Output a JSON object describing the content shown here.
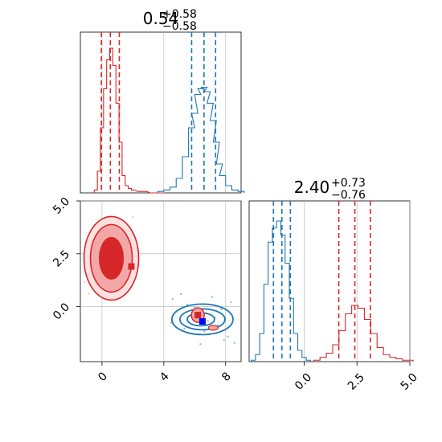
{
  "chart_data": {
    "type": "corner",
    "colors": {
      "red": "#d62728",
      "blue": "#1f77b4",
      "red_light": "#f4a7a7",
      "grid": "#b0b0b0"
    },
    "param1": {
      "title_main": "0.54",
      "title_sup": "+0.58",
      "title_sub": "−0.58",
      "range": [
        -1.4,
        9.0
      ],
      "ticks": [
        0,
        4,
        8
      ],
      "tick_labels": [
        "0",
        "4",
        "8"
      ]
    },
    "param2": {
      "title_main": "2.40",
      "title_sup": "+0.73",
      "title_sub": "−0.76",
      "range": [
        -2.6,
        5.0
      ],
      "ticks": [
        0,
        2.5,
        5.0
      ],
      "tick_labels": [
        "0.0",
        "2.5",
        "5.0"
      ]
    },
    "hist1": {
      "red": {
        "x": [
          -0.4,
          -0.2,
          0,
          0.2,
          0.4,
          0.6,
          0.8,
          1.0,
          1.2,
          1.4,
          1.6,
          1.8,
          2.0,
          2.4,
          2.8,
          3.2,
          3.6,
          4.0
        ],
        "y": [
          0.02,
          0.15,
          0.45,
          0.72,
          0.92,
          1.0,
          0.88,
          0.62,
          0.35,
          0.12,
          0.05,
          0.03,
          0.02,
          0.01,
          0.01,
          0.0,
          0.0,
          0.0
        ],
        "quantiles": [
          -0.04,
          0.54,
          1.12
        ]
      },
      "blue": {
        "x": [
          3.8,
          4.2,
          4.6,
          5.0,
          5.4,
          5.8,
          6.0,
          6.2,
          6.4,
          6.6,
          6.8,
          7.0,
          7.2,
          7.4,
          7.6,
          7.8,
          8.2,
          8.6,
          9.0
        ],
        "y": [
          0.01,
          0.02,
          0.04,
          0.1,
          0.25,
          0.45,
          0.55,
          0.68,
          0.72,
          0.73,
          0.7,
          0.62,
          0.5,
          0.35,
          0.2,
          0.12,
          0.05,
          0.02,
          0.01
        ],
        "quantiles": [
          5.8,
          6.6,
          7.35
        ]
      }
    },
    "hist2": {
      "blue": {
        "x": [
          -2.4,
          -2.2,
          -2.0,
          -1.8,
          -1.6,
          -1.4,
          -1.2,
          -1.0,
          -0.8,
          -0.6,
          -0.4,
          -0.2,
          0.0,
          0.2
        ],
        "y": [
          0.01,
          0.05,
          0.2,
          0.55,
          0.85,
          0.95,
          1.0,
          0.9,
          0.7,
          0.45,
          0.2,
          0.08,
          0.03,
          0.01
        ],
        "quantiles": [
          -1.45,
          -1.05,
          -0.65
        ]
      },
      "red": {
        "x": [
          0.6,
          0.9,
          1.2,
          1.5,
          1.8,
          2.1,
          2.4,
          2.7,
          3.0,
          3.3,
          3.6,
          3.9,
          4.2,
          4.5,
          4.8,
          5.0
        ],
        "y": [
          0.01,
          0.03,
          0.06,
          0.12,
          0.22,
          0.34,
          0.4,
          0.38,
          0.3,
          0.2,
          0.1,
          0.05,
          0.03,
          0.02,
          0.01,
          0.01
        ],
        "quantiles": [
          1.64,
          2.4,
          3.13
        ]
      }
    },
    "joint": {
      "red_mode": {
        "x": 0.5,
        "y": 2.4
      },
      "red_marker2": {
        "x": 1.9,
        "y": 1.9
      },
      "blue_center": {
        "x": 6.5,
        "y": -0.6
      },
      "red_small_blob": {
        "x": 6.2,
        "y": -0.4
      },
      "red_far_blob": {
        "x": 7.2,
        "y": -1.0
      },
      "blue_marker": {
        "x": 6.5,
        "y": -0.7
      }
    }
  }
}
